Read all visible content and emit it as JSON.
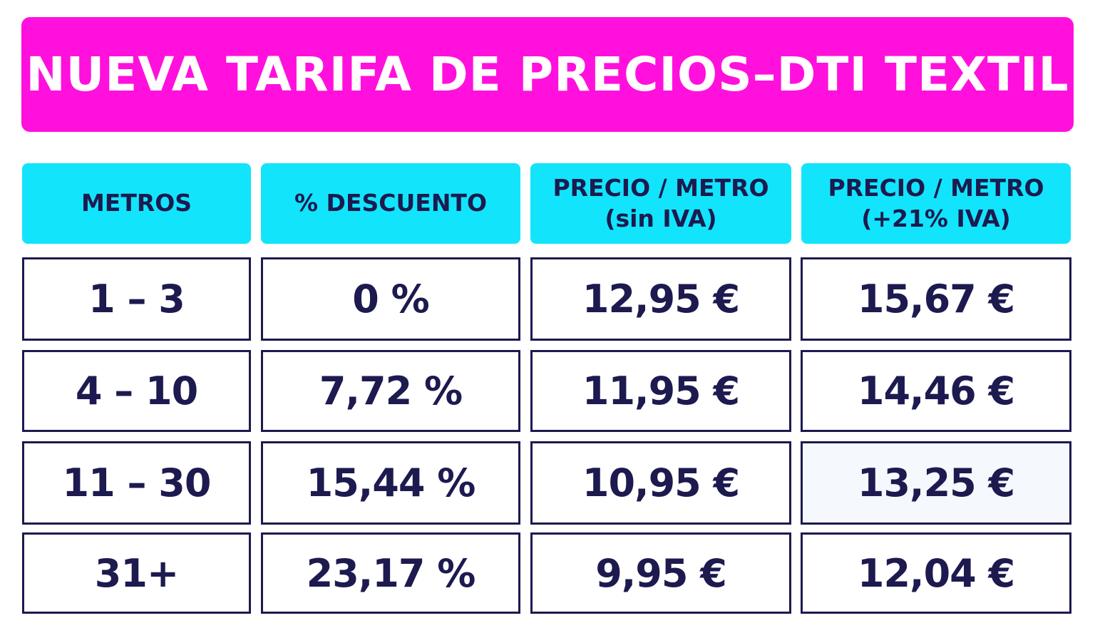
{
  "colors": {
    "title_bg": "#ff10dc",
    "header_bg": "#12e4fb",
    "text_dark": "#1c1a4f",
    "title_text": "#ffffff"
  },
  "title": "NUEVA TARIFA DE  PRECIOS–DTI TEXTIL",
  "headers": [
    {
      "line1": "METROS",
      "line2": ""
    },
    {
      "line1": "% DESCUENTO",
      "line2": ""
    },
    {
      "line1": "PRECIO / METRO",
      "line2": "(sin IVA)"
    },
    {
      "line1": "PRECIO / METRO",
      "line2": "(+21% IVA)"
    }
  ],
  "rows": [
    {
      "metros": "1 – 3",
      "descuento": "0 %",
      "precio_sin_iva": "12,95 €",
      "precio_con_iva": "15,67 €"
    },
    {
      "metros": "4 – 10",
      "descuento": "7,72 %",
      "precio_sin_iva": "11,95 €",
      "precio_con_iva": "14,46 €"
    },
    {
      "metros": "11 – 30",
      "descuento": "15,44 %",
      "precio_sin_iva": "10,95 €",
      "precio_con_iva": "13,25 €"
    },
    {
      "metros": "31+",
      "descuento": "23,17 %",
      "precio_sin_iva": "9,95 €",
      "precio_con_iva": "12,04 €"
    }
  ]
}
